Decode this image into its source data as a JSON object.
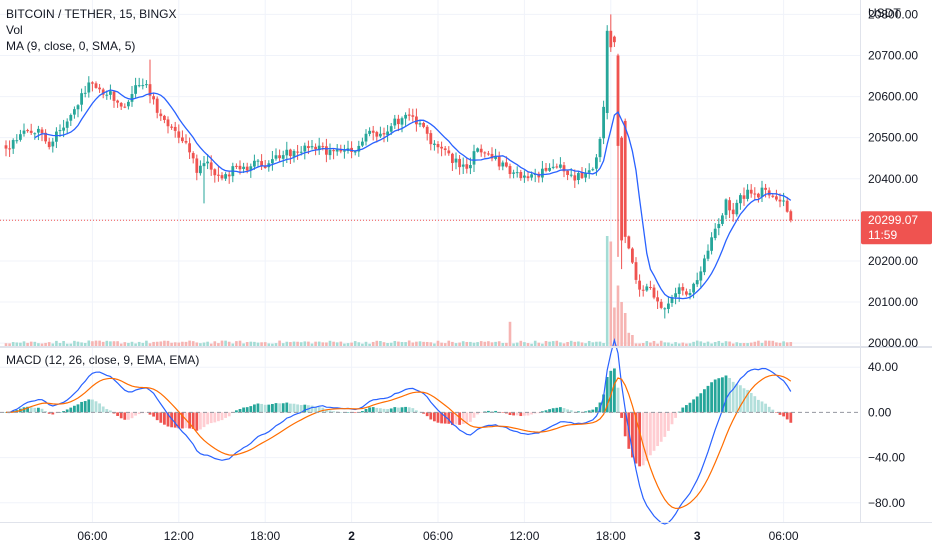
{
  "header": {
    "symbol": "BITCOIN / TETHER, 15, BINGX",
    "volume_label": "Vol",
    "ma_label": "MA (9, close, 0, SMA, 5)",
    "macd_label": "MACD (12, 26, close, 9, EMA, EMA)"
  },
  "price_axis": {
    "unit": "USDT",
    "ticks": [
      "20800.00",
      "20700.00",
      "20600.00",
      "20500.00",
      "20400.00",
      "20300.00",
      "20200.00",
      "20100.00",
      "20000.00"
    ],
    "tick_values": [
      20800,
      20700,
      20600,
      20500,
      20400,
      20300,
      20200,
      20100,
      20000
    ],
    "range": [
      19993,
      20835
    ]
  },
  "macd_axis": {
    "ticks": [
      "40.00",
      "0.00",
      "−40.00",
      "−80.00"
    ],
    "tick_values": [
      40,
      0,
      -40,
      -80
    ],
    "range": [
      -97,
      57
    ]
  },
  "last_price": {
    "value": 20299.07,
    "label": "20299.07",
    "countdown": "11:59"
  },
  "time_axis": {
    "labels": [
      {
        "text": "06:00",
        "bar": 24,
        "bold": false
      },
      {
        "text": "12:00",
        "bar": 48,
        "bold": false
      },
      {
        "text": "18:00",
        "bar": 72,
        "bold": false
      },
      {
        "text": "2",
        "bar": 96,
        "bold": true
      },
      {
        "text": "06:00",
        "bar": 120,
        "bold": false
      },
      {
        "text": "12:00",
        "bar": 144,
        "bold": false
      },
      {
        "text": "18:00",
        "bar": 168,
        "bold": false
      },
      {
        "text": "3",
        "bar": 192,
        "bold": true
      },
      {
        "text": "06:00",
        "bar": 216,
        "bold": false
      }
    ]
  },
  "colors": {
    "up": "#26a69a",
    "down": "#ef5350",
    "up_volume": "#a4dcd5",
    "down_volume": "#f6b4b2",
    "hist_up_strong": "#26a69a",
    "hist_up_weak": "#b2dfdb",
    "hist_down_strong": "#ef5350",
    "hist_down_weak": "#ffcdd2",
    "ma_line": "#2962ff",
    "macd_line": "#2962ff",
    "signal_line": "#ff6d00",
    "grid": "#f0f3fa",
    "last_price": "#ef5350"
  },
  "chart_data": {
    "type": "candlestick",
    "timeframe_minutes": 15,
    "closes_keypoints": [
      [
        0,
        20470
      ],
      [
        3,
        20490
      ],
      [
        6,
        20520
      ],
      [
        9,
        20515
      ],
      [
        12,
        20480
      ],
      [
        15,
        20520
      ],
      [
        18,
        20555
      ],
      [
        21,
        20600
      ],
      [
        24,
        20640
      ],
      [
        27,
        20610
      ],
      [
        30,
        20600
      ],
      [
        33,
        20580
      ],
      [
        36,
        20620
      ],
      [
        39,
        20630
      ],
      [
        42,
        20560
      ],
      [
        46,
        20520
      ],
      [
        50,
        20480
      ],
      [
        53,
        20420
      ],
      [
        56,
        20435
      ],
      [
        60,
        20390
      ],
      [
        63,
        20430
      ],
      [
        66,
        20420
      ],
      [
        69,
        20445
      ],
      [
        72,
        20430
      ],
      [
        75,
        20450
      ],
      [
        80,
        20470
      ],
      [
        85,
        20480
      ],
      [
        90,
        20460
      ],
      [
        95,
        20470
      ],
      [
        98,
        20480
      ],
      [
        101,
        20520
      ],
      [
        104,
        20500
      ],
      [
        107,
        20530
      ],
      [
        110,
        20550
      ],
      [
        113,
        20540
      ],
      [
        116,
        20520
      ],
      [
        119,
        20480
      ],
      [
        122,
        20460
      ],
      [
        125,
        20440
      ],
      [
        128,
        20420
      ],
      [
        131,
        20480
      ],
      [
        134,
        20460
      ],
      [
        137,
        20440
      ],
      [
        140,
        20420
      ],
      [
        143,
        20410
      ],
      [
        146,
        20400
      ],
      [
        150,
        20420
      ],
      [
        154,
        20430
      ],
      [
        157,
        20410
      ],
      [
        160,
        20400
      ],
      [
        163,
        20420
      ],
      [
        165,
        20500
      ],
      [
        167,
        20650
      ],
      [
        168,
        20740
      ],
      [
        169,
        20740
      ],
      [
        170,
        20680
      ],
      [
        171,
        20550
      ],
      [
        172,
        20260
      ],
      [
        173,
        20220
      ],
      [
        175,
        20160
      ],
      [
        177,
        20120
      ],
      [
        179,
        20140
      ],
      [
        181,
        20100
      ],
      [
        183,
        20090
      ],
      [
        186,
        20130
      ],
      [
        189,
        20120
      ],
      [
        192,
        20150
      ],
      [
        194,
        20200
      ],
      [
        196,
        20260
      ],
      [
        198,
        20300
      ],
      [
        200,
        20340
      ],
      [
        202,
        20320
      ],
      [
        204,
        20350
      ],
      [
        206,
        20370
      ],
      [
        208,
        20360
      ],
      [
        210,
        20370
      ],
      [
        212,
        20360
      ],
      [
        214,
        20350
      ],
      [
        216,
        20340
      ],
      [
        217,
        20320
      ],
      [
        218,
        20299
      ]
    ],
    "ma_period": 9,
    "macd": {
      "fast": 12,
      "slow": 26,
      "signal": 9
    },
    "volume_spike_bars": [
      {
        "bar": 167,
        "volume": 1.0
      },
      {
        "bar": 168,
        "volume": 0.95
      },
      {
        "bar": 169,
        "volume": 0.35
      },
      {
        "bar": 170,
        "volume": 0.55
      },
      {
        "bar": 171,
        "volume": 0.4
      },
      {
        "bar": 172,
        "volume": 0.3
      },
      {
        "bar": 173,
        "volume": 0.12
      },
      {
        "bar": 174,
        "volume": 0.1
      },
      {
        "bar": 140,
        "volume": 0.22
      },
      {
        "bar": 112,
        "volume": 0.05
      }
    ],
    "value_axis_range": [
      19993,
      20835
    ]
  }
}
